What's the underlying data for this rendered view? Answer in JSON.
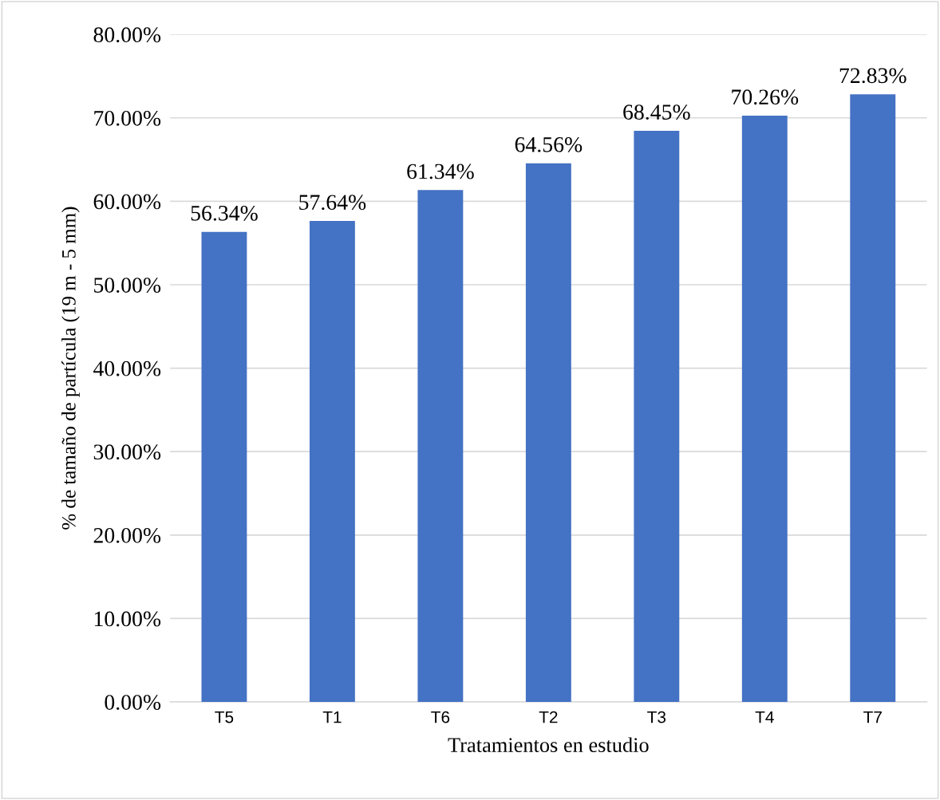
{
  "chart_data": {
    "type": "bar",
    "xlabel": "Tratamientos en estudio",
    "ylabel": "% de tamaño de partícula (19 m - 5 mm)",
    "categories": [
      "T5",
      "T1",
      "T6",
      "T2",
      "T3",
      "T4",
      "T7"
    ],
    "values": [
      56.34,
      57.64,
      61.34,
      64.56,
      68.45,
      70.26,
      72.83
    ],
    "value_labels": [
      "56.34%",
      "57.64%",
      "61.34%",
      "64.56%",
      "68.45%",
      "70.26%",
      "72.83%"
    ],
    "color": "#4472c4",
    "ylim": [
      0,
      80
    ],
    "yticks": [
      {
        "value": 0,
        "label": "0.00%"
      },
      {
        "value": 10,
        "label": "10.00%"
      },
      {
        "value": 20,
        "label": "20.00%"
      },
      {
        "value": 30,
        "label": "30.00%"
      },
      {
        "value": 40,
        "label": "40.00%"
      },
      {
        "value": 50,
        "label": "50.00%"
      },
      {
        "value": 60,
        "label": "60.00%"
      },
      {
        "value": 70,
        "label": "70.00%"
      },
      {
        "value": 80,
        "label": "80.00%"
      }
    ],
    "grid": "y",
    "legend": false
  }
}
